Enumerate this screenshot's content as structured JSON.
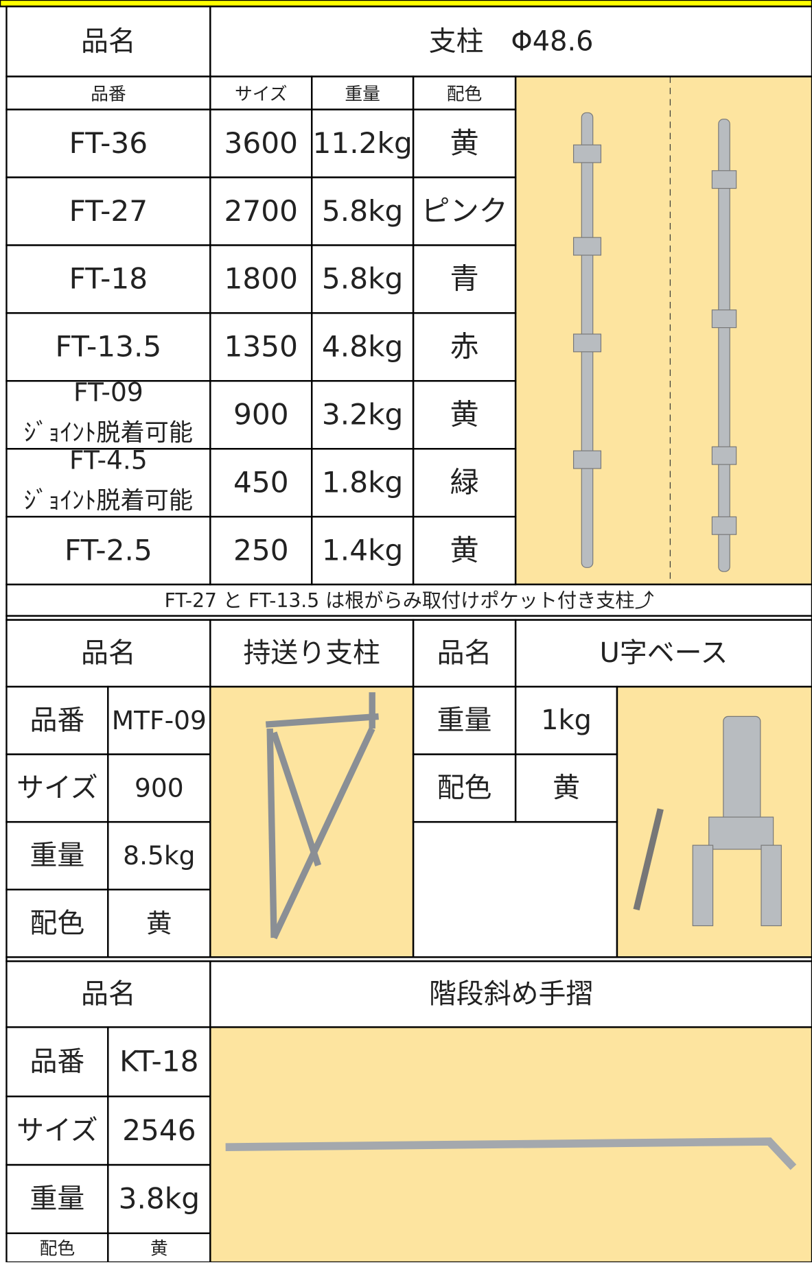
{
  "sections": [
    {
      "label": "品名",
      "name": "支柱　Φ48.6",
      "columns": [
        "品番",
        "サイズ",
        "重量",
        "配色"
      ],
      "rows": [
        {
          "code": "FT-36",
          "size": "3600",
          "weight": "11.2kg",
          "color": "黄"
        },
        {
          "code": "FT-27",
          "size": "2700",
          "weight": "5.8kg",
          "color": "ピンク"
        },
        {
          "code": "FT-18",
          "size": "1800",
          "weight": "5.8kg",
          "color": "青"
        },
        {
          "code": "FT-13.5",
          "size": "1350",
          "weight": "4.8kg",
          "color": "赤"
        },
        {
          "code": "FT-09",
          "sub": "ｼﾞｮｲﾝﾄ脱着可能",
          "size": "900",
          "weight": "3.2kg",
          "color": "黄"
        },
        {
          "code": "FT-4.5",
          "sub": "ｼﾞｮｲﾝﾄ脱着可能",
          "size": "450",
          "weight": "1.8kg",
          "color": "緑"
        },
        {
          "code": "FT-2.5",
          "size": "250",
          "weight": "1.4kg",
          "color": "黄"
        }
      ],
      "note": "FT-27 と FT-13.5 は根がらみ取付けポケット付き支柱⤴"
    },
    {
      "label": "品名",
      "name": "持送り支柱",
      "specs": [
        [
          "品番",
          "MTF-09"
        ],
        [
          "サイズ",
          "900"
        ],
        [
          "重量",
          "8.5kg"
        ],
        [
          "配色",
          "黄"
        ]
      ]
    },
    {
      "label": "品名",
      "name": "U字ベース",
      "specs": [
        [
          "重量",
          "1kg"
        ],
        [
          "配色",
          "黄"
        ]
      ]
    },
    {
      "label": "品名",
      "name": "階段斜め手摺",
      "specs": [
        [
          "品番",
          "KT-18"
        ],
        [
          "サイズ",
          "2546"
        ],
        [
          "重量",
          "3.8kg"
        ],
        [
          "配色",
          "黄"
        ]
      ]
    }
  ]
}
